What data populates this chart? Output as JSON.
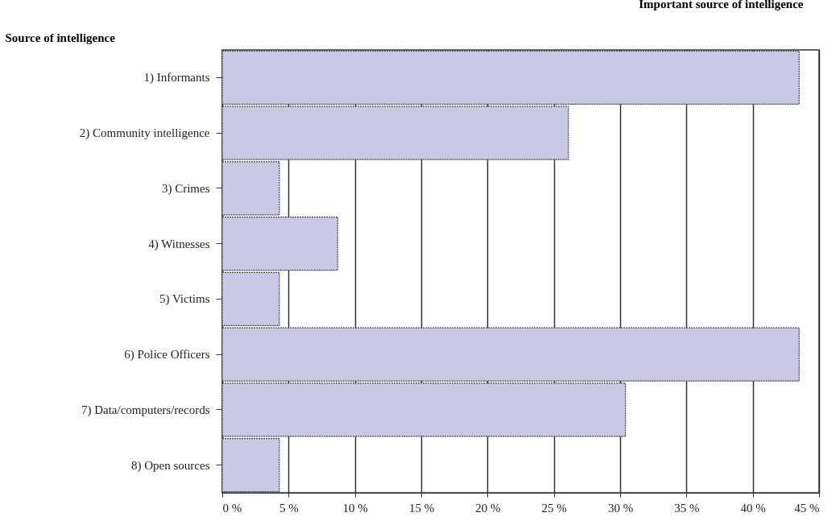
{
  "chart_data": {
    "type": "bar",
    "orientation": "horizontal",
    "title": "Important source of intelligence",
    "ylabel": "Source of intelligence",
    "categories": [
      "1) Informants",
      "2) Community intelligence",
      "3) Crimes",
      "4) Witnesses",
      "5) Victims",
      "6) Police Officers",
      "7) Data/computers/records",
      "8) Open sources"
    ],
    "values": [
      43.5,
      26.1,
      4.3,
      8.7,
      4.3,
      43.5,
      30.4,
      4.3
    ],
    "color": "#c9c9e6",
    "xlim": [
      0,
      45
    ],
    "xticks": [
      {
        "value": 0,
        "label": "0 %"
      },
      {
        "value": 5,
        "label": "5 %"
      },
      {
        "value": 10,
        "label": "10 %"
      },
      {
        "value": 15,
        "label": "15 %"
      },
      {
        "value": 20,
        "label": "20 %"
      },
      {
        "value": 25,
        "label": "25 %"
      },
      {
        "value": 30,
        "label": "30 %"
      },
      {
        "value": 35,
        "label": "35 %"
      },
      {
        "value": 40,
        "label": "40 %"
      },
      {
        "value": 45,
        "label": "45 %"
      }
    ],
    "grid": "x"
  }
}
